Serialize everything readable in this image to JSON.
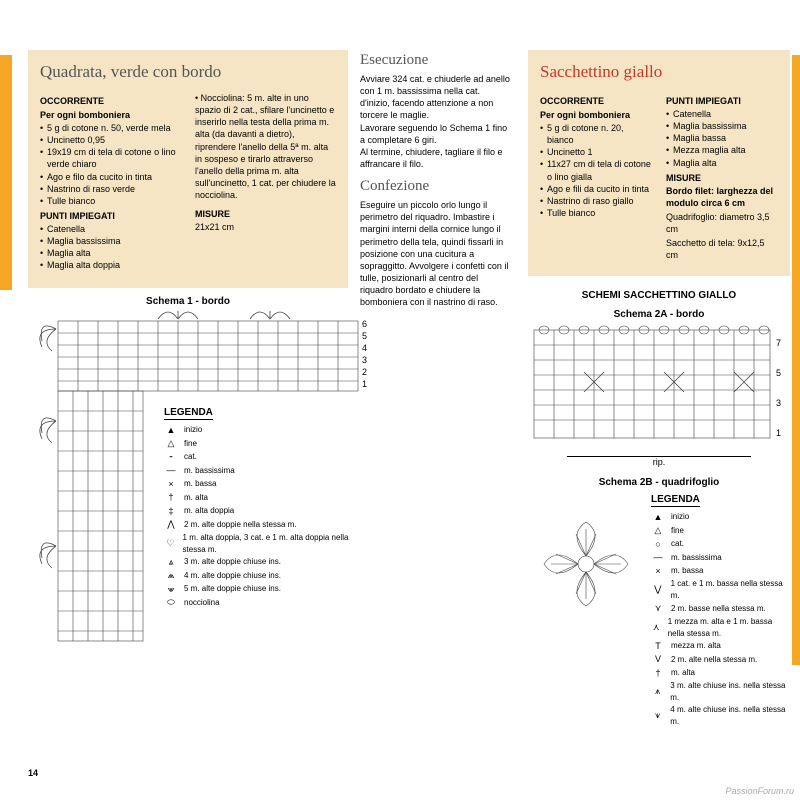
{
  "left": {
    "title": "Quadrata, verde con bordo",
    "h_occ": "OCCORRENTE",
    "occ_sub": "Per ogni bomboniera",
    "occ_items": [
      "5 g di cotone n. 50, verde mela",
      "Uncinetto 0,95",
      "19x19 cm di tela di cotone o lino verde chiaro",
      "Ago e filo da cucito in tinta",
      "Nastrino di raso verde",
      "Tulle bianco"
    ],
    "h_punti": "PUNTI IMPIEGATI",
    "punti_items": [
      "Catenella",
      "Maglia bassissima",
      "Maglia alta",
      "Maglia alta doppia"
    ],
    "col2_text": "• Nocciolina: 5 m. alte in uno spazio di 2 cat., sfilare l'uncinetto e inserirlo nella testa della prima m. alta (da davanti a dietro), riprendere l'anello della 5ª m. alta in sospeso e tirarlo attraverso l'anello della prima m. alta sull'uncinetto, 1 cat. per chiudere la nocciolina.",
    "h_misure": "MISURE",
    "misure_val": "21x21 cm",
    "schema1_title": "Schema 1 - bordo",
    "legend_title": "LEGENDA",
    "legend": [
      {
        "s": "▲",
        "t": "inizio"
      },
      {
        "s": "△",
        "t": "fine"
      },
      {
        "s": "⁃",
        "t": "cat."
      },
      {
        "s": "—",
        "t": "m. bassissima"
      },
      {
        "s": "×",
        "t": "m. bassa"
      },
      {
        "s": "†",
        "t": "m. alta"
      },
      {
        "s": "‡",
        "t": "m. alta doppia"
      },
      {
        "s": "⋀",
        "t": "2 m. alte doppie nella stessa m."
      },
      {
        "s": "♡",
        "t": "1 m. alta doppia, 3 cat. e 1 m. alta doppia nella stessa m."
      },
      {
        "s": "⩓",
        "t": "3 m. alte doppie chiuse ins."
      },
      {
        "s": "⩕",
        "t": "4 m. alte doppie chiuse ins."
      },
      {
        "s": "⩖",
        "t": "5 m. alte doppie chiuse ins."
      },
      {
        "s": "⬭",
        "t": "nocciolina"
      }
    ]
  },
  "mid": {
    "h_esec": "Esecuzione",
    "esec_text": "Avviare 324 cat. e chiuderle ad anello con 1 m. bassissima nella cat. d'inizio, facendo attenzione a non torcere le maglie.\nLavorare seguendo lo Schema 1 fino a completare 6 giri.\nAl termine, chiudere, tagliare il filo e affrancare il filo.",
    "h_conf": "Confezione",
    "conf_text": "Eseguire un piccolo orlo lungo il perimetro del riquadro. Imbastire i margini interni della cornice lungo il perimetro della tela, quindi fissarli in posizione con una cucitura a sopraggitto. Avvolgere i confetti con il tulle, posizionarli al centro del riquadro bordato e chiudere la bomboniera con il nastrino di raso."
  },
  "right": {
    "title": "Sacchettino giallo",
    "h_occ": "OCCORRENTE",
    "occ_sub": "Per ogni bomboniera",
    "occ_items": [
      "5 g di cotone n. 20, bianco",
      "Uncinetto 1",
      "11x27 cm di tela di cotone o lino gialla",
      "Ago e fili da cucito in tinta",
      "Nastrino di raso giallo",
      "Tulle bianco"
    ],
    "h_punti": "PUNTI IMPIEGATI",
    "punti_items": [
      "Catenella",
      "Maglia bassissima",
      "Maglia bassa",
      "Mezza maglia alta",
      "Maglia alta"
    ],
    "h_misure": "MISURE",
    "misure_lines": [
      "Bordo filet: larghezza del modulo circa 6 cm",
      "Quadrifoglio: diametro 3,5 cm",
      "Sacchetto di tela: 9x12,5 cm"
    ],
    "schemi_title": "SCHEMI SACCHETTINO GIALLO",
    "schema2a_title": "Schema 2A - bordo",
    "schema2b_title": "Schema 2B - quadrifoglio",
    "rip_label": "rip.",
    "row_labels": [
      "1",
      "3",
      "5",
      "7"
    ],
    "legend_title": "LEGENDA",
    "legend": [
      {
        "s": "▲",
        "t": "inizio"
      },
      {
        "s": "△",
        "t": "fine"
      },
      {
        "s": "○",
        "t": "cat."
      },
      {
        "s": "—",
        "t": "m. bassissima"
      },
      {
        "s": "×",
        "t": "m. bassa"
      },
      {
        "s": "⋁",
        "t": "1 cat. e 1 m. bassa nella stessa m."
      },
      {
        "s": "⋎",
        "t": "2 m. basse nella stessa m."
      },
      {
        "s": "⋏",
        "t": "1 mezza m. alta e 1 m. bassa nella stessa m."
      },
      {
        "s": "T",
        "t": "mezza m. alta"
      },
      {
        "s": "V",
        "t": "2 m. alte nella stessa m."
      },
      {
        "s": "†",
        "t": "m. alta"
      },
      {
        "s": "⩚",
        "t": "3 m. alte chiuse ins. nella stessa m."
      },
      {
        "s": "⩛",
        "t": "4 m. alte chiuse ins. nella stessa m."
      }
    ]
  },
  "page_number": "14",
  "watermark": "PassionForum.ru"
}
